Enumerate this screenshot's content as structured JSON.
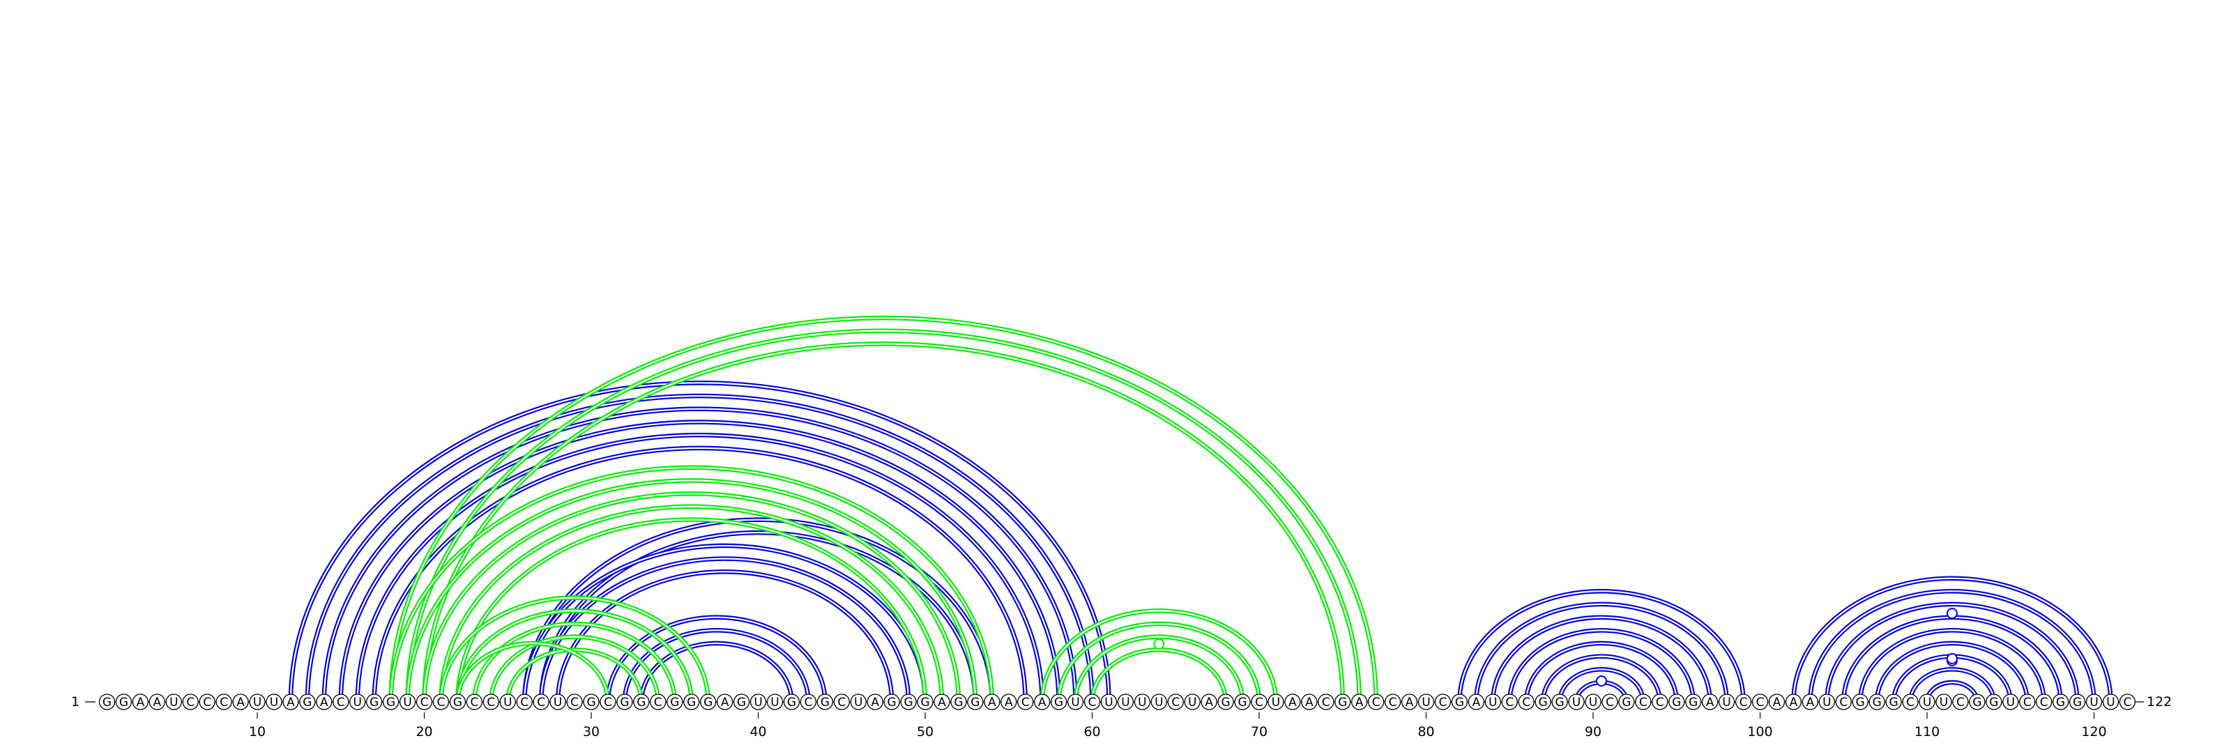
{
  "sequence": "GGAAUCCCAUUAGACUGGUCCGCCUCCUCGCGGCGGGAGUUGCGCUAGGGAGGAACAGUCUUUUCUAGGCUAACGACCAUCGAUCCGGUUCGCCGGAUCCAAAUCGGGCUUCGGUCCGGUUC",
  "start_label": "1",
  "end_label": "122",
  "tick_labels": [
    "10",
    "20",
    "30",
    "40",
    "50",
    "60",
    "70",
    "80",
    "90",
    "100",
    "110",
    "120"
  ],
  "colors": {
    "blue": "#0000dd",
    "green": "#00ee00"
  },
  "helices": [
    {
      "color": "blue",
      "pairs": [
        [
          12,
          61
        ],
        [
          13,
          60
        ],
        [
          14,
          59
        ],
        [
          15,
          58
        ],
        [
          16,
          57
        ],
        [
          17,
          56
        ]
      ]
    },
    {
      "color": "blue",
      "pairs": [
        [
          26,
          54
        ],
        [
          27,
          53
        ]
      ]
    },
    {
      "color": "blue",
      "pairs": [
        [
          26,
          50
        ],
        [
          27,
          49
        ],
        [
          28,
          48
        ]
      ]
    },
    {
      "color": "blue",
      "pairs": [
        [
          31,
          44
        ],
        [
          32,
          43
        ],
        [
          33,
          42
        ]
      ]
    },
    {
      "color": "green",
      "pairs": [
        [
          18,
          77
        ],
        [
          19,
          76
        ],
        [
          20,
          75
        ]
      ]
    },
    {
      "color": "green",
      "pairs": [
        [
          18,
          54
        ],
        [
          19,
          53
        ],
        [
          20,
          52
        ],
        [
          21,
          51
        ],
        [
          22,
          50
        ]
      ]
    },
    {
      "color": "green",
      "pairs": [
        [
          21,
          37
        ],
        [
          22,
          36
        ],
        [
          23,
          35
        ],
        [
          24,
          34
        ],
        [
          25,
          33
        ]
      ]
    },
    {
      "color": "green",
      "pairs": [
        [
          22,
          31
        ]
      ]
    },
    {
      "color": "green",
      "pairs": [
        [
          57,
          71
        ],
        [
          58,
          70
        ],
        [
          59,
          69
        ],
        [
          60,
          68
        ]
      ]
    },
    {
      "color": "blue",
      "pairs": [
        [
          82,
          99
        ],
        [
          83,
          98
        ],
        [
          84,
          97
        ],
        [
          85,
          96
        ],
        [
          86,
          95
        ],
        [
          87,
          94
        ],
        [
          88,
          93
        ],
        [
          89,
          92
        ]
      ]
    },
    {
      "color": "blue",
      "pairs": [
        [
          102,
          121
        ],
        [
          103,
          120
        ],
        [
          104,
          119
        ],
        [
          105,
          118
        ],
        [
          106,
          117
        ],
        [
          107,
          116
        ],
        [
          108,
          115
        ],
        [
          109,
          114
        ],
        [
          110,
          113
        ]
      ]
    }
  ],
  "loop_markers": [
    {
      "color": "green",
      "pos": 64
    },
    {
      "color": "blue",
      "pos": 90.5
    },
    {
      "color": "blue",
      "pos": 111.5
    }
  ]
}
